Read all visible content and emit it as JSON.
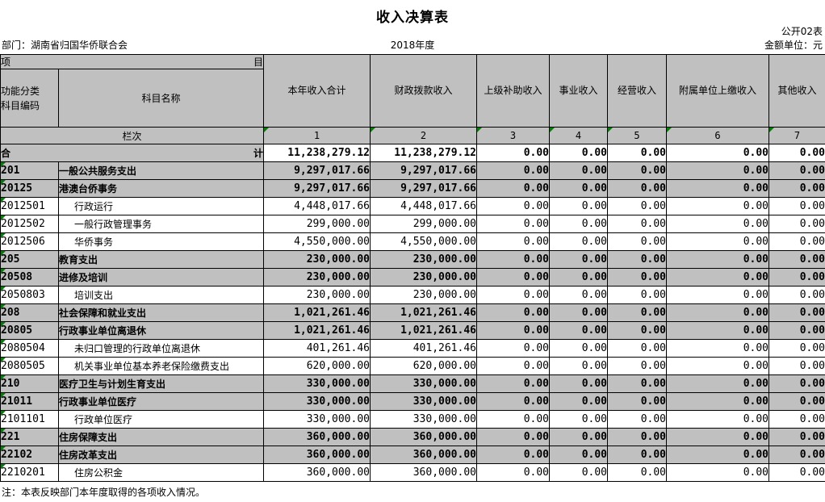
{
  "title": "收入决算表",
  "meta": {
    "table_code": "公开02表",
    "department": "部门：湖南省归国华侨联合会",
    "year": "2018年度",
    "unit": "金额单位：元"
  },
  "colors": {
    "header_gray": "#c0c0c0",
    "error_triangle_green": "#008000",
    "grid_line": "#000000"
  },
  "header": {
    "item_left": "项",
    "item_right": "目",
    "code_label": "功能分类\n科目编码",
    "name_label": "科目名称",
    "columns": [
      "本年收入合计",
      "财政拨款收入",
      "上级补助收入",
      "事业收入",
      "经营收入",
      "附属单位上缴收入",
      "其他收入"
    ],
    "lanci_label": "栏次",
    "lanci_numbers": [
      "1",
      "2",
      "3",
      "4",
      "5",
      "6",
      "7"
    ]
  },
  "total_row": {
    "label_left": "合",
    "label_right": "计",
    "values": [
      "11,238,279.12",
      "11,238,279.12",
      "0.00",
      "0.00",
      "0.00",
      "0.00",
      "0.00"
    ]
  },
  "rows": [
    {
      "code": "201",
      "name": "一般公共服务支出",
      "level": "section",
      "values": [
        "9,297,017.66",
        "9,297,017.66",
        "0.00",
        "0.00",
        "0.00",
        "0.00",
        "0.00"
      ]
    },
    {
      "code": "20125",
      "name": "港澳台侨事务",
      "level": "section",
      "values": [
        "9,297,017.66",
        "9,297,017.66",
        "0.00",
        "0.00",
        "0.00",
        "0.00",
        "0.00"
      ]
    },
    {
      "code": "2012501",
      "name": "行政运行",
      "level": "detail",
      "values": [
        "4,448,017.66",
        "4,448,017.66",
        "0.00",
        "0.00",
        "0.00",
        "0.00",
        "0.00"
      ]
    },
    {
      "code": "2012502",
      "name": "一般行政管理事务",
      "level": "detail",
      "values": [
        "299,000.00",
        "299,000.00",
        "0.00",
        "0.00",
        "0.00",
        "0.00",
        "0.00"
      ]
    },
    {
      "code": "2012506",
      "name": "华侨事务",
      "level": "detail",
      "values": [
        "4,550,000.00",
        "4,550,000.00",
        "0.00",
        "0.00",
        "0.00",
        "0.00",
        "0.00"
      ]
    },
    {
      "code": "205",
      "name": "教育支出",
      "level": "section",
      "values": [
        "230,000.00",
        "230,000.00",
        "0.00",
        "0.00",
        "0.00",
        "0.00",
        "0.00"
      ]
    },
    {
      "code": "20508",
      "name": "进修及培训",
      "level": "section",
      "values": [
        "230,000.00",
        "230,000.00",
        "0.00",
        "0.00",
        "0.00",
        "0.00",
        "0.00"
      ]
    },
    {
      "code": "2050803",
      "name": "培训支出",
      "level": "detail",
      "values": [
        "230,000.00",
        "230,000.00",
        "0.00",
        "0.00",
        "0.00",
        "0.00",
        "0.00"
      ]
    },
    {
      "code": "208",
      "name": "社会保障和就业支出",
      "level": "section",
      "values": [
        "1,021,261.46",
        "1,021,261.46",
        "0.00",
        "0.00",
        "0.00",
        "0.00",
        "0.00"
      ]
    },
    {
      "code": "20805",
      "name": "行政事业单位离退休",
      "level": "section",
      "values": [
        "1,021,261.46",
        "1,021,261.46",
        "0.00",
        "0.00",
        "0.00",
        "0.00",
        "0.00"
      ]
    },
    {
      "code": "2080504",
      "name": "未归口管理的行政单位离退休",
      "level": "detail",
      "values": [
        "401,261.46",
        "401,261.46",
        "0.00",
        "0.00",
        "0.00",
        "0.00",
        "0.00"
      ]
    },
    {
      "code": "2080505",
      "name": "机关事业单位基本养老保险缴费支出",
      "level": "detail",
      "values": [
        "620,000.00",
        "620,000.00",
        "0.00",
        "0.00",
        "0.00",
        "0.00",
        "0.00"
      ]
    },
    {
      "code": "210",
      "name": "医疗卫生与计划生育支出",
      "level": "section",
      "values": [
        "330,000.00",
        "330,000.00",
        "0.00",
        "0.00",
        "0.00",
        "0.00",
        "0.00"
      ]
    },
    {
      "code": "21011",
      "name": "行政事业单位医疗",
      "level": "section",
      "values": [
        "330,000.00",
        "330,000.00",
        "0.00",
        "0.00",
        "0.00",
        "0.00",
        "0.00"
      ]
    },
    {
      "code": "2101101",
      "name": "行政单位医疗",
      "level": "detail",
      "values": [
        "330,000.00",
        "330,000.00",
        "0.00",
        "0.00",
        "0.00",
        "0.00",
        "0.00"
      ]
    },
    {
      "code": "221",
      "name": "住房保障支出",
      "level": "section",
      "values": [
        "360,000.00",
        "360,000.00",
        "0.00",
        "0.00",
        "0.00",
        "0.00",
        "0.00"
      ]
    },
    {
      "code": "22102",
      "name": "住房改革支出",
      "level": "section",
      "values": [
        "360,000.00",
        "360,000.00",
        "0.00",
        "0.00",
        "0.00",
        "0.00",
        "0.00"
      ]
    },
    {
      "code": "2210201",
      "name": "住房公积金",
      "level": "detail",
      "values": [
        "360,000.00",
        "360,000.00",
        "0.00",
        "0.00",
        "0.00",
        "0.00",
        "0.00"
      ]
    }
  ],
  "note": "注：本表反映部门本年度取得的各项收入情况。"
}
